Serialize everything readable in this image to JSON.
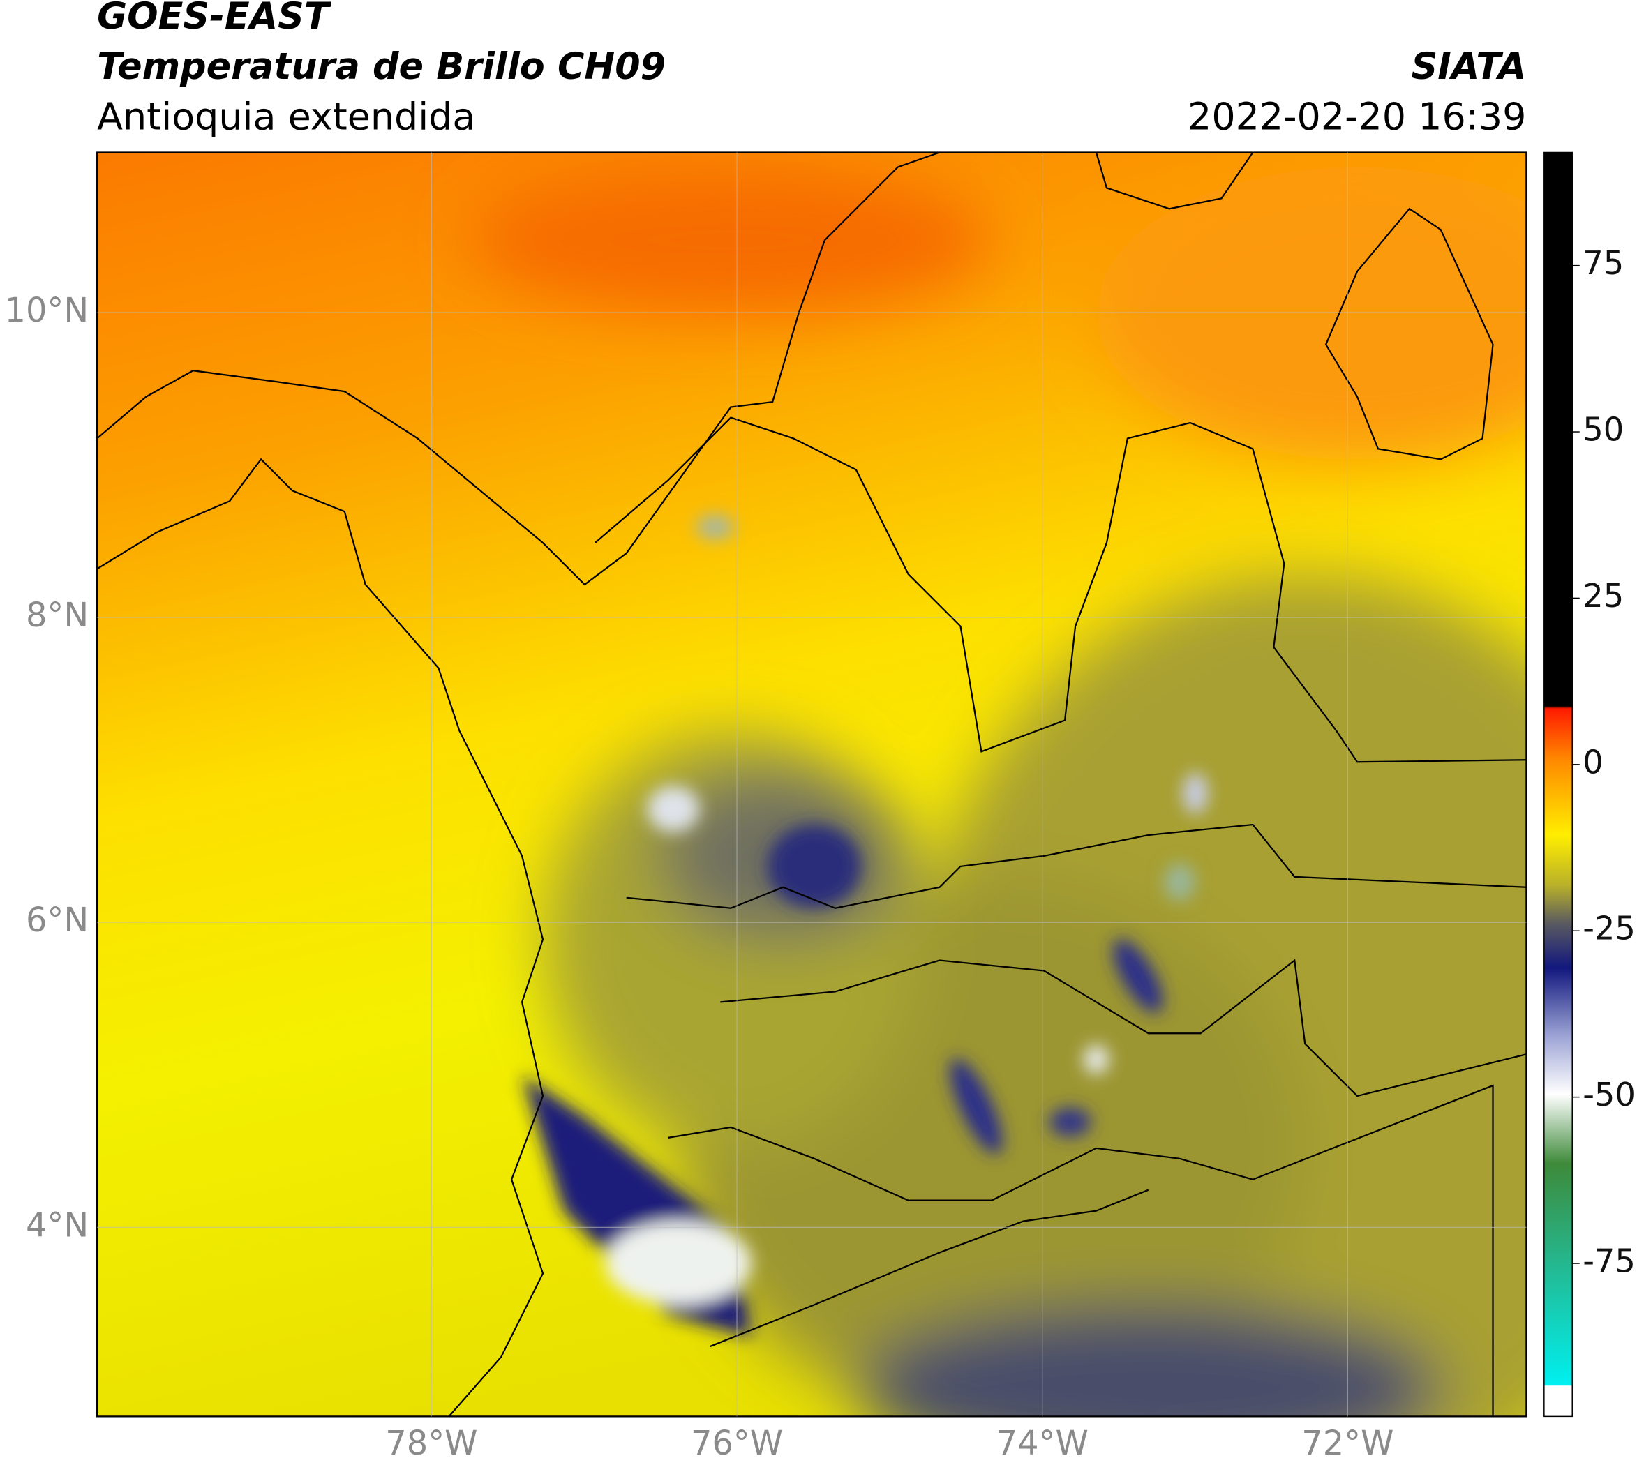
{
  "header": {
    "title": "GOES-EAST",
    "subtitle": "Temperatura de Brillo CH09",
    "region": "Antioquia extendida",
    "agency": "SIATA",
    "datetime": "2022-02-20 16:39"
  },
  "map": {
    "xlim": [
      -80.19,
      -70.83
    ],
    "ylim": [
      2.76,
      11.05
    ],
    "xticks": [
      {
        "value": -78,
        "label": "78°W"
      },
      {
        "value": -76,
        "label": "76°W"
      },
      {
        "value": -74,
        "label": "74°W"
      },
      {
        "value": -72,
        "label": "72°W"
      }
    ],
    "yticks": [
      {
        "value": 4,
        "label": "4°N"
      },
      {
        "value": 6,
        "label": "6°N"
      },
      {
        "value": 8,
        "label": "8°N"
      },
      {
        "value": 10,
        "label": "10°N"
      }
    ],
    "grid": true
  },
  "colorbar": {
    "ylim": [
      -98,
      92
    ],
    "yticks": [
      -75,
      -50,
      -25,
      0,
      25,
      50,
      75
    ]
  }
}
